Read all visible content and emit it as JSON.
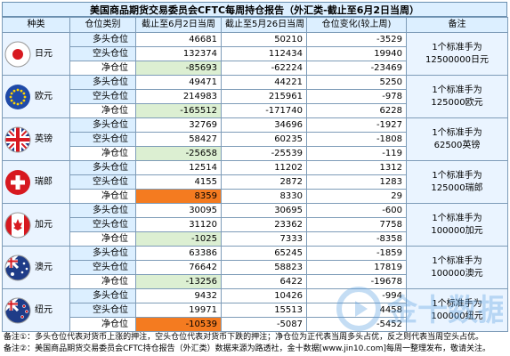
{
  "title": "美国商品期货交易委员会CFTC每周持仓报告（外汇类-截止至6月2日当周）",
  "headers": [
    "种类",
    "仓位类别",
    "截止至6月2日当周",
    "截止至5月26日当周",
    "仓位变化(较上周)",
    "备注"
  ],
  "currencies": [
    {
      "name": "日元",
      "flag": "japan-flag-icon",
      "rows": [
        {
          "type": "多头仓位",
          "cur": "46681",
          "prev": "50210",
          "chg": "-3529"
        },
        {
          "type": "空头仓位",
          "cur": "132374",
          "prev": "112434",
          "chg": "19940"
        },
        {
          "type": "净仓位",
          "cur": "-85693",
          "prev": "-62224",
          "chg": "-23469"
        }
      ],
      "note_line1": "1个标准手为",
      "note_line2": "12500000日元"
    },
    {
      "name": "欧元",
      "flag": "eu-flag-icon",
      "rows": [
        {
          "type": "多头仓位",
          "cur": "49471",
          "prev": "44221",
          "chg": "5250"
        },
        {
          "type": "空头仓位",
          "cur": "214983",
          "prev": "215961",
          "chg": "-978"
        },
        {
          "type": "净仓位",
          "cur": "-165512",
          "prev": "-171740",
          "chg": "6228"
        }
      ],
      "note_line1": "1个标准手为",
      "note_line2": "125000欧元"
    },
    {
      "name": "英镑",
      "flag": "uk-flag-icon",
      "rows": [
        {
          "type": "多头仓位",
          "cur": "32769",
          "prev": "34696",
          "chg": "-1927"
        },
        {
          "type": "空头仓位",
          "cur": "58427",
          "prev": "60235",
          "chg": "-1808"
        },
        {
          "type": "净仓位",
          "cur": "-25658",
          "prev": "-25539",
          "chg": "-119"
        }
      ],
      "note_line1": "1个标准手为",
      "note_line2": "62500英镑"
    },
    {
      "name": "瑞郎",
      "flag": "swiss-flag-icon",
      "rows": [
        {
          "type": "多头仓位",
          "cur": "12514",
          "prev": "11202",
          "chg": "1312"
        },
        {
          "type": "空头仓位",
          "cur": "4155",
          "prev": "2872",
          "chg": "1283"
        },
        {
          "type": "净仓位",
          "cur": "8359",
          "prev": "8330",
          "chg": "29"
        }
      ],
      "note_line1": "1个标准手为",
      "note_line2": "125000瑞郎"
    },
    {
      "name": "加元",
      "flag": "canada-flag-icon",
      "rows": [
        {
          "type": "多头仓位",
          "cur": "30095",
          "prev": "30695",
          "chg": "-600"
        },
        {
          "type": "空头仓位",
          "cur": "31120",
          "prev": "23362",
          "chg": "7758"
        },
        {
          "type": "净仓位",
          "cur": "-1025",
          "prev": "7333",
          "chg": "-8358"
        }
      ],
      "note_line1": "1个标准手为",
      "note_line2": "100000加元"
    },
    {
      "name": "澳元",
      "flag": "australia-flag-icon",
      "rows": [
        {
          "type": "多头仓位",
          "cur": "63386",
          "prev": "65245",
          "chg": "-1859"
        },
        {
          "type": "空头仓位",
          "cur": "76642",
          "prev": "58823",
          "chg": "17819"
        },
        {
          "type": "净仓位",
          "cur": "-13256",
          "prev": "6422",
          "chg": "-19678"
        }
      ],
      "note_line1": "1个标准手为",
      "note_line2": "100000澳元"
    },
    {
      "name": "纽元",
      "flag": "newzealand-flag-icon",
      "rows": [
        {
          "type": "多头仓位",
          "cur": "9432",
          "prev": "10426",
          "chg": "-994"
        },
        {
          "type": "空头仓位",
          "cur": "19971",
          "prev": "15513",
          "chg": "4458"
        },
        {
          "type": "净仓位",
          "cur": "-10539",
          "prev": "-5087",
          "chg": "-5452"
        }
      ],
      "note_line1": "1个标准手为",
      "note_line2": "100000纽元"
    }
  ],
  "highlight": {
    "orange": "#f47b20",
    "green": "#dcefd2"
  },
  "footer": {
    "line1": "备注①：多头仓位代表对货币上涨的押注，空头仓位代表对货币下跌的押注；净仓位为正代表当周多头占优，反之则代表当周空头占优。",
    "line2": "备注②：美国商品期货交易委员会CFTC持仓报告（外汇类）数据来源为路透社，金十数据[www.jin10.com]每周一整理发布，敬请关注。"
  },
  "watermark": "金十数据"
}
